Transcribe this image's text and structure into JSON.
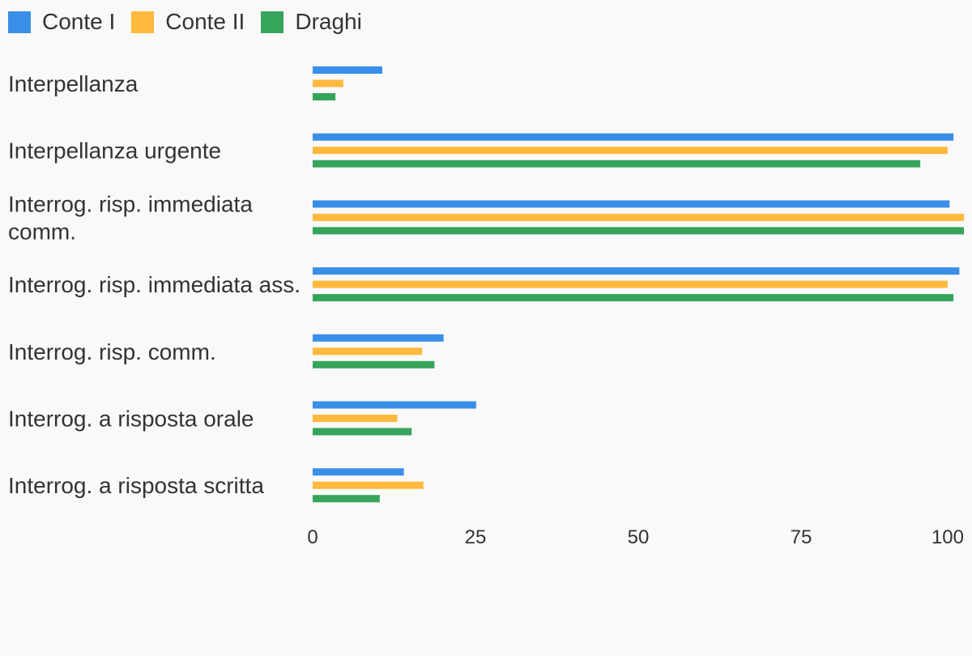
{
  "chart_data": {
    "type": "bar",
    "orientation": "horizontal",
    "categories": [
      "Interpellanza",
      "Interpellanza urgente",
      "Interrog. risp. immediata comm.",
      "Interrog. risp. immediata ass.",
      "Interrog. risp. comm.",
      "Interrog. a risposta orale",
      "Interrog. a risposta scritta"
    ],
    "series": [
      {
        "name": "Conte I",
        "color": "#398ee8",
        "values": [
          10.7,
          98.4,
          97.8,
          99.3,
          20.1,
          25.1,
          14.0
        ]
      },
      {
        "name": "Conte II",
        "color": "#ffb93d",
        "values": [
          4.7,
          97.5,
          100,
          97.5,
          16.8,
          13.0,
          17.0
        ]
      },
      {
        "name": "Draghi",
        "color": "#36a55b",
        "values": [
          3.5,
          93.3,
          100,
          98.4,
          18.7,
          15.2,
          10.3
        ]
      }
    ],
    "xlim": [
      0,
      100
    ],
    "xticks": [
      "0",
      "25",
      "50",
      "75",
      "100"
    ],
    "legend_position": "top-left",
    "grid": false
  }
}
